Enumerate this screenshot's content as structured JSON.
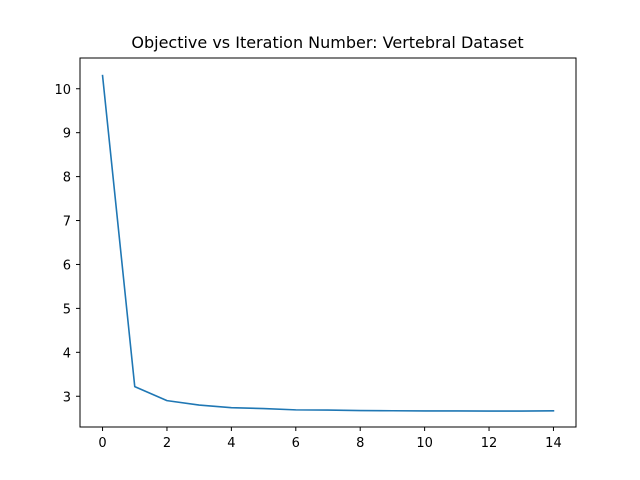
{
  "chart_data": {
    "type": "line",
    "title": "Objective vs Iteration Number: Vertebral Dataset",
    "xlabel": "",
    "ylabel": "",
    "xlim": [
      -0.7,
      14.7
    ],
    "ylim": [
      2.3,
      10.7
    ],
    "xticks": [
      0,
      2,
      4,
      6,
      8,
      10,
      12,
      14
    ],
    "yticks": [
      3,
      4,
      5,
      6,
      7,
      8,
      9,
      10
    ],
    "grid": false,
    "series": [
      {
        "color": "#1f77b4",
        "x": [
          0,
          1,
          2,
          3,
          4,
          5,
          6,
          7,
          8,
          9,
          10,
          11,
          12,
          13,
          14
        ],
        "y": [
          10.3,
          3.22,
          2.9,
          2.8,
          2.74,
          2.72,
          2.69,
          2.685,
          2.675,
          2.67,
          2.665,
          2.665,
          2.663,
          2.663,
          2.668
        ]
      }
    ]
  }
}
